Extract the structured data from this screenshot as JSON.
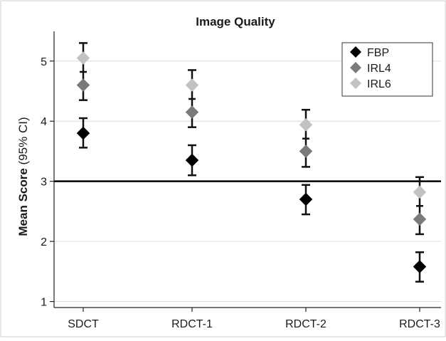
{
  "chart_data": {
    "type": "scatter",
    "title": "Image Quality",
    "xlabel": "",
    "ylabel_bold": "Mean Score",
    "ylabel_rest": " (95% CI)",
    "categories": [
      "SDCT",
      "RDCT-1",
      "RDCT-2",
      "RDCT-3"
    ],
    "ylim": [
      0.9,
      5.4
    ],
    "yticks": [
      1,
      2,
      3,
      4,
      5
    ],
    "grid": true,
    "reference_line": 3,
    "legend_position": "top-right",
    "series": [
      {
        "name": "FBP",
        "color": "#000000",
        "values": [
          3.8,
          3.35,
          2.7,
          1.58
        ]
      },
      {
        "name": "IRL4",
        "color": "#7a7a7a",
        "values": [
          4.6,
          4.15,
          3.5,
          2.37
        ]
      },
      {
        "name": "IRL6",
        "color": "#c2c2c2",
        "values": [
          5.05,
          4.6,
          3.94,
          2.82
        ]
      }
    ],
    "error_bars": [
      {
        "series": "FBP",
        "lower": [
          3.56,
          3.1,
          2.45,
          1.33
        ],
        "upper": [
          4.05,
          3.6,
          2.94,
          1.82
        ]
      },
      {
        "series": "IRL6",
        "lower": [
          4.35,
          3.9,
          3.24,
          2.12
        ],
        "upper": [
          5.3,
          4.85,
          4.19,
          3.07
        ]
      }
    ],
    "category_means": [
      4.82,
      4.37,
      3.71,
      2.59
    ]
  }
}
